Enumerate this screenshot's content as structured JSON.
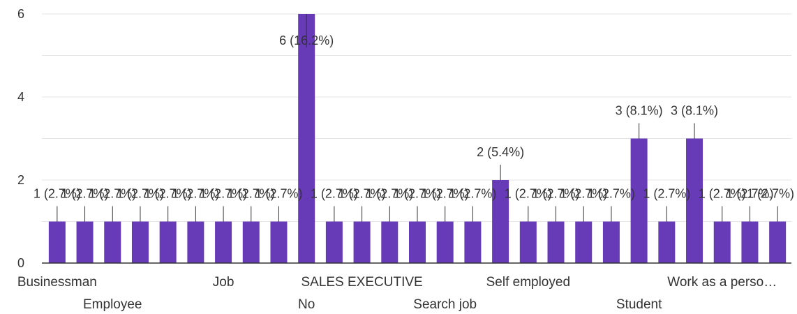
{
  "chart_data": {
    "type": "bar",
    "title": "",
    "xlabel": "",
    "ylabel": "",
    "ylim": [
      0,
      6
    ],
    "yticks": [
      0,
      2,
      4,
      6
    ],
    "grid": true,
    "legend": "none",
    "color": "#673ab7",
    "categories": [
      "Businessman",
      "",
      "Employee",
      "",
      "",
      "",
      "Job",
      "",
      "",
      "No",
      "",
      "SALES EXECUTIVE",
      "",
      "",
      "Search job",
      "",
      "",
      "Self employed",
      "",
      "",
      "",
      "Student",
      "",
      "",
      "Work as a perso…",
      "",
      ""
    ],
    "values": [
      1,
      1,
      1,
      1,
      1,
      1,
      1,
      1,
      1,
      6,
      1,
      1,
      1,
      1,
      1,
      1,
      2,
      1,
      1,
      1,
      1,
      3,
      1,
      3,
      1,
      1,
      1
    ],
    "data_labels": [
      "1 (2.7%)",
      "1 (2.7%)",
      "1 (2.7%)",
      "1 (2.7%)",
      "1 (2.7%)",
      "1 (2.7%)",
      "1 (2.7%)",
      "1 (2.7%)",
      "1 (2.7%)",
      "6 (16.2%)",
      "1 (2.7%)",
      "1 (2.7%)",
      "1 (2.7%)",
      "1 (2.7%)",
      "1 (2.7%)",
      "1 (2.7%)",
      "2 (5.4%)",
      "1 (2.7%)",
      "1 (2.7%)",
      "1 (2.7%)",
      "1 (2.7%)",
      "3 (8.1%)",
      "1 (2.7%)",
      "3 (8.1%)",
      "1 (2.7%)",
      "1 (2.7%)",
      "1 (2.7%)"
    ],
    "category_label_rows": [
      0,
      0,
      1,
      0,
      0,
      0,
      0,
      0,
      0,
      1,
      0,
      0,
      0,
      0,
      1,
      0,
      0,
      0,
      0,
      0,
      0,
      1,
      0,
      0,
      0,
      0,
      0
    ]
  }
}
